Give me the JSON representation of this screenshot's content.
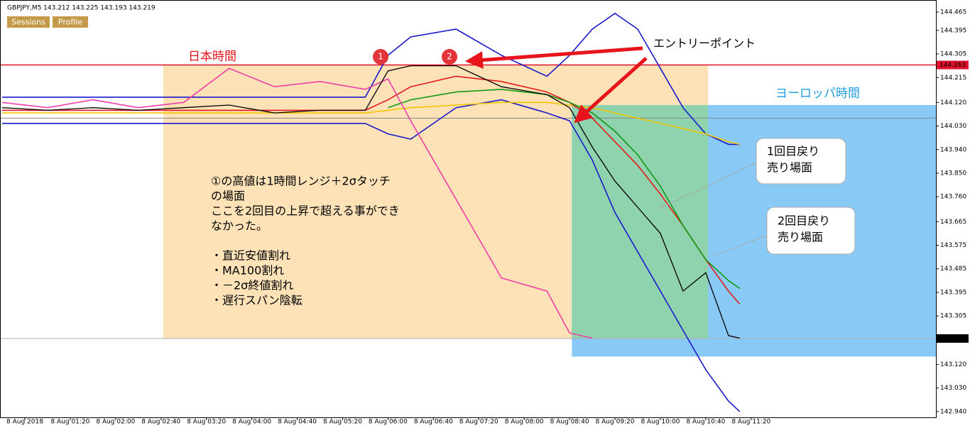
{
  "header": {
    "symbol": "GBPJPY,M5 143.212 143.225 143.193 143.219",
    "buttons": [
      "Sessions",
      "Profile"
    ]
  },
  "chart_data": {
    "type": "line",
    "xlim": [
      18.1,
      842.8
    ],
    "ylim": [
      142.918,
      144.511
    ],
    "xticks": [
      {
        "value": 40,
        "label": "8 Aug 2018"
      },
      {
        "value": 80,
        "label": "8 Aug 01:20"
      },
      {
        "value": 120,
        "label": "8 Aug 02:00"
      },
      {
        "value": 160,
        "label": "8 Aug 02:40"
      },
      {
        "value": 200,
        "label": "8 Aug 03:20"
      },
      {
        "value": 240,
        "label": "8 Aug 04:00"
      },
      {
        "value": 280,
        "label": "8 Aug 04:40"
      },
      {
        "value": 320,
        "label": "8 Aug 05:20"
      },
      {
        "value": 360,
        "label": "8 Aug 06:00"
      },
      {
        "value": 400,
        "label": "8 Aug 06:40"
      },
      {
        "value": 440,
        "label": "8 Aug 07:20"
      },
      {
        "value": 480,
        "label": "8 Aug 08:00"
      },
      {
        "value": 520,
        "label": "8 Aug 08:40"
      },
      {
        "value": 560,
        "label": "8 Aug 09:20"
      },
      {
        "value": 600,
        "label": "8 Aug 10:00"
      },
      {
        "value": 640,
        "label": "8 Aug 10:40"
      },
      {
        "value": 680,
        "label": "8 Aug 11:20"
      }
    ],
    "yticks": [
      144.465,
      144.395,
      144.305,
      144.215,
      {
        "value": 144.12,
        "label": "144.120"
      },
      {
        "value": 144.03,
        "label": "144.030"
      },
      {
        "value": 143.94,
        "label": "143.940"
      },
      {
        "value": 143.85,
        "label": "143.850"
      },
      {
        "value": 143.76,
        "label": "143.760"
      },
      143.665,
      143.575,
      143.485,
      143.395,
      143.305,
      {
        "value": 143.12,
        "label": "143.120"
      },
      {
        "value": 143.03,
        "label": "143.030"
      },
      {
        "value": 142.94,
        "label": "142.940"
      }
    ],
    "x": [
      20,
      60,
      100,
      140,
      180,
      220,
      260,
      300,
      340,
      360,
      380,
      420,
      460,
      500,
      520,
      540,
      560,
      580,
      600,
      620,
      640,
      660,
      670
    ],
    "series": [
      {
        "color": "#1a1acc",
        "values": [
          144.14,
          144.14,
          144.14,
          144.14,
          144.14,
          144.14,
          144.14,
          144.14,
          144.14,
          144.3,
          144.37,
          144.4,
          144.3,
          144.22,
          144.3,
          144.4,
          144.46,
          144.4,
          144.25,
          144.1,
          144.0,
          143.96,
          143.96
        ]
      },
      {
        "color": "#1a1acc",
        "values": [
          144.04,
          144.04,
          144.04,
          144.04,
          144.04,
          144.04,
          144.04,
          144.04,
          144.04,
          144.0,
          143.98,
          144.1,
          144.13,
          144.08,
          144.05,
          143.9,
          143.7,
          143.55,
          143.4,
          143.25,
          143.1,
          142.98,
          142.94
        ]
      },
      {
        "color": "#f5c400",
        "values": [
          144.08,
          144.08,
          144.08,
          144.08,
          144.08,
          144.08,
          144.08,
          144.08,
          144.08,
          144.09,
          144.1,
          144.11,
          144.12,
          144.12,
          144.11,
          144.1,
          144.08,
          144.06,
          144.04,
          144.02,
          144.0,
          143.97,
          143.96
        ]
      },
      {
        "color": "#e61919",
        "values": [
          144.09,
          144.09,
          144.09,
          144.09,
          144.09,
          144.09,
          144.09,
          144.09,
          144.09,
          144.13,
          144.18,
          144.22,
          144.2,
          144.16,
          144.12,
          144.06,
          143.97,
          143.88,
          143.77,
          143.65,
          143.52,
          143.4,
          143.35
        ]
      },
      {
        "color": "#119911",
        "values": [
          null,
          null,
          null,
          null,
          null,
          null,
          null,
          null,
          null,
          144.1,
          144.13,
          144.16,
          144.17,
          144.15,
          144.12,
          144.08,
          144.01,
          143.92,
          143.8,
          143.65,
          143.52,
          143.44,
          143.41
        ]
      },
      {
        "color": "#ee3fa8",
        "values": [
          144.12,
          144.1,
          144.13,
          144.1,
          144.12,
          144.25,
          144.18,
          144.2,
          144.17,
          144.21,
          144.05,
          143.75,
          143.45,
          143.4,
          143.24,
          143.22,
          null,
          null,
          null,
          null,
          null,
          null,
          null
        ]
      },
      {
        "color": "#000000",
        "values": [
          144.1,
          144.09,
          144.1,
          144.09,
          144.1,
          144.11,
          144.08,
          144.09,
          144.09,
          144.24,
          144.26,
          144.26,
          144.18,
          144.15,
          144.1,
          143.95,
          143.82,
          143.72,
          143.62,
          143.4,
          143.47,
          143.23,
          143.22
        ]
      }
    ],
    "hlines": [
      {
        "value": 144.263,
        "label": "144.263",
        "color": "#e0102a"
      },
      {
        "value": 143.219,
        "label": "143.219",
        "color": "#b0b0b0"
      },
      {
        "value": 144.06,
        "color": "#888888"
      }
    ],
    "sessions": [
      {
        "label": "日本時間",
        "start": 162,
        "end": 642,
        "top": 144.263,
        "bottom": 143.219,
        "color": "#fde2b8"
      },
      {
        "label": "ヨーロッパ時間",
        "start": 522,
        "end": 842.8,
        "top": 144.11,
        "bottom": 143.15,
        "color": "#88c9f5"
      }
    ],
    "overlap_color": "#8ed3ad",
    "markers": [
      "1",
      "2"
    ],
    "entry_label": "エントリーポイント",
    "note": [
      "①の高値は1時間レンジ＋2σタッチ",
      "の場面",
      "ここを2回目の上昇で超える事ができ",
      "なかった。",
      "",
      "・直近安値割れ",
      "・MA100割れ",
      "・－2σ終値割れ",
      "・遅行スパン陰転"
    ],
    "callouts": [
      [
        "1回目戻り",
        "売り場面"
      ],
      [
        "2回目戻り",
        "売り場面"
      ]
    ]
  }
}
